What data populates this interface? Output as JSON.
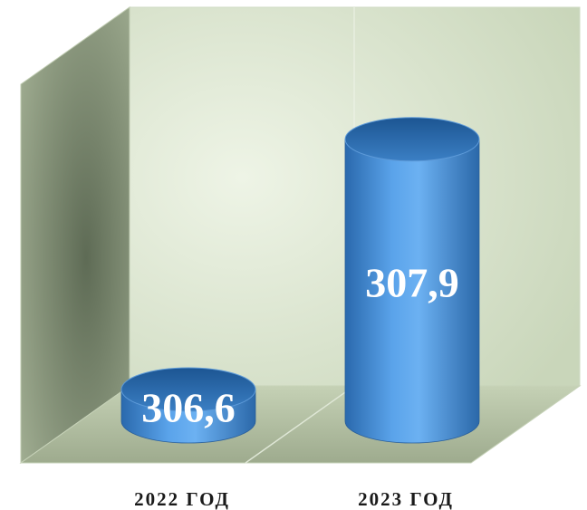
{
  "chart_data": {
    "type": "bar",
    "style": "3d-cylinder",
    "categories": [
      "2022 ГОД",
      "2023 ГОД"
    ],
    "values": [
      306.6,
      307.9
    ],
    "value_labels": [
      "306,6",
      "307,9"
    ],
    "title": "",
    "xlabel": "",
    "ylabel": "",
    "grid": false,
    "legend": "none",
    "colors": {
      "bar": "#4a90d9",
      "bar_dark": "#1f5c9e",
      "bar_light": "#7ab6f2",
      "back_wall": "#dfe9d2",
      "side_wall": "#8c9a7e",
      "floor": "#b7c4a6"
    }
  }
}
